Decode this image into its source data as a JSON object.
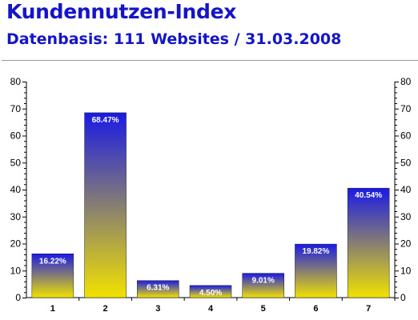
{
  "header": {
    "title": "Kundennutzen-Index",
    "subtitle": "Datenbasis: 111 Websites / 31.03.2008"
  },
  "colors": {
    "title": "#1414c8",
    "bar_top": "#1a1ae6",
    "bar_bottom": "#f2e200",
    "axis": "#000000"
  },
  "chart_data": {
    "type": "bar",
    "title": "",
    "xlabel": "",
    "ylabel": "",
    "categories": [
      "1",
      "2",
      "3",
      "4",
      "5",
      "6",
      "7"
    ],
    "values": [
      16.22,
      68.47,
      6.31,
      4.5,
      9.01,
      19.82,
      40.54
    ],
    "data_labels": [
      "16.22%",
      "68.47%",
      "6.31%",
      "4.50%",
      "9.01%",
      "19.82%",
      "40.54%"
    ],
    "ylim": [
      0,
      80
    ],
    "yticks": [
      0,
      10,
      20,
      30,
      40,
      50,
      60,
      70,
      80
    ],
    "ytick_labels": [
      "0",
      "10",
      "20",
      "30",
      "40",
      "50",
      "60",
      "70",
      "80"
    ],
    "secondary_y_axis": true,
    "grid": false,
    "legend": "none"
  }
}
